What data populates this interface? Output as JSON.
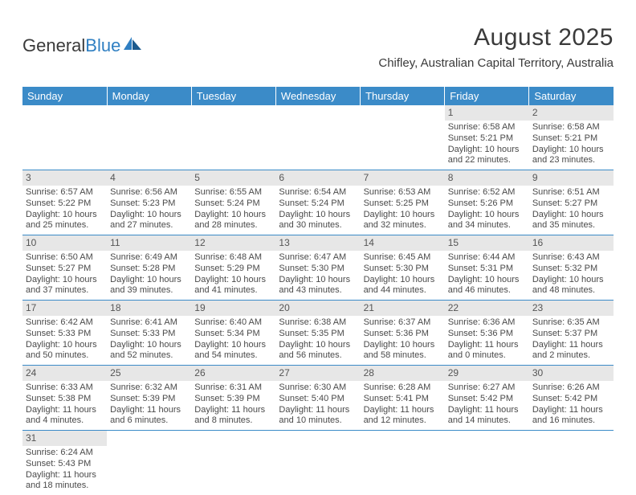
{
  "brand": {
    "part1": "General",
    "part2": "Blue"
  },
  "title": "August 2025",
  "location": "Chifley, Australian Capital Territory, Australia",
  "colors": {
    "header_bg": "#3b8bc8",
    "header_fg": "#ffffff",
    "daynum_bg": "#e7e7e7",
    "row_border": "#3b8bc8"
  },
  "fonts": {
    "title_size": 30,
    "location_size": 15,
    "th_size": 13,
    "cell_size": 11
  },
  "weekdays": [
    "Sunday",
    "Monday",
    "Tuesday",
    "Wednesday",
    "Thursday",
    "Friday",
    "Saturday"
  ],
  "weeks": [
    [
      {
        "day": "",
        "sunrise": "",
        "sunset": "",
        "daylight": ""
      },
      {
        "day": "",
        "sunrise": "",
        "sunset": "",
        "daylight": ""
      },
      {
        "day": "",
        "sunrise": "",
        "sunset": "",
        "daylight": ""
      },
      {
        "day": "",
        "sunrise": "",
        "sunset": "",
        "daylight": ""
      },
      {
        "day": "",
        "sunrise": "",
        "sunset": "",
        "daylight": ""
      },
      {
        "day": "1",
        "sunrise": "Sunrise: 6:58 AM",
        "sunset": "Sunset: 5:21 PM",
        "daylight": "Daylight: 10 hours and 22 minutes."
      },
      {
        "day": "2",
        "sunrise": "Sunrise: 6:58 AM",
        "sunset": "Sunset: 5:21 PM",
        "daylight": "Daylight: 10 hours and 23 minutes."
      }
    ],
    [
      {
        "day": "3",
        "sunrise": "Sunrise: 6:57 AM",
        "sunset": "Sunset: 5:22 PM",
        "daylight": "Daylight: 10 hours and 25 minutes."
      },
      {
        "day": "4",
        "sunrise": "Sunrise: 6:56 AM",
        "sunset": "Sunset: 5:23 PM",
        "daylight": "Daylight: 10 hours and 27 minutes."
      },
      {
        "day": "5",
        "sunrise": "Sunrise: 6:55 AM",
        "sunset": "Sunset: 5:24 PM",
        "daylight": "Daylight: 10 hours and 28 minutes."
      },
      {
        "day": "6",
        "sunrise": "Sunrise: 6:54 AM",
        "sunset": "Sunset: 5:24 PM",
        "daylight": "Daylight: 10 hours and 30 minutes."
      },
      {
        "day": "7",
        "sunrise": "Sunrise: 6:53 AM",
        "sunset": "Sunset: 5:25 PM",
        "daylight": "Daylight: 10 hours and 32 minutes."
      },
      {
        "day": "8",
        "sunrise": "Sunrise: 6:52 AM",
        "sunset": "Sunset: 5:26 PM",
        "daylight": "Daylight: 10 hours and 34 minutes."
      },
      {
        "day": "9",
        "sunrise": "Sunrise: 6:51 AM",
        "sunset": "Sunset: 5:27 PM",
        "daylight": "Daylight: 10 hours and 35 minutes."
      }
    ],
    [
      {
        "day": "10",
        "sunrise": "Sunrise: 6:50 AM",
        "sunset": "Sunset: 5:27 PM",
        "daylight": "Daylight: 10 hours and 37 minutes."
      },
      {
        "day": "11",
        "sunrise": "Sunrise: 6:49 AM",
        "sunset": "Sunset: 5:28 PM",
        "daylight": "Daylight: 10 hours and 39 minutes."
      },
      {
        "day": "12",
        "sunrise": "Sunrise: 6:48 AM",
        "sunset": "Sunset: 5:29 PM",
        "daylight": "Daylight: 10 hours and 41 minutes."
      },
      {
        "day": "13",
        "sunrise": "Sunrise: 6:47 AM",
        "sunset": "Sunset: 5:30 PM",
        "daylight": "Daylight: 10 hours and 43 minutes."
      },
      {
        "day": "14",
        "sunrise": "Sunrise: 6:45 AM",
        "sunset": "Sunset: 5:30 PM",
        "daylight": "Daylight: 10 hours and 44 minutes."
      },
      {
        "day": "15",
        "sunrise": "Sunrise: 6:44 AM",
        "sunset": "Sunset: 5:31 PM",
        "daylight": "Daylight: 10 hours and 46 minutes."
      },
      {
        "day": "16",
        "sunrise": "Sunrise: 6:43 AM",
        "sunset": "Sunset: 5:32 PM",
        "daylight": "Daylight: 10 hours and 48 minutes."
      }
    ],
    [
      {
        "day": "17",
        "sunrise": "Sunrise: 6:42 AM",
        "sunset": "Sunset: 5:33 PM",
        "daylight": "Daylight: 10 hours and 50 minutes."
      },
      {
        "day": "18",
        "sunrise": "Sunrise: 6:41 AM",
        "sunset": "Sunset: 5:33 PM",
        "daylight": "Daylight: 10 hours and 52 minutes."
      },
      {
        "day": "19",
        "sunrise": "Sunrise: 6:40 AM",
        "sunset": "Sunset: 5:34 PM",
        "daylight": "Daylight: 10 hours and 54 minutes."
      },
      {
        "day": "20",
        "sunrise": "Sunrise: 6:38 AM",
        "sunset": "Sunset: 5:35 PM",
        "daylight": "Daylight: 10 hours and 56 minutes."
      },
      {
        "day": "21",
        "sunrise": "Sunrise: 6:37 AM",
        "sunset": "Sunset: 5:36 PM",
        "daylight": "Daylight: 10 hours and 58 minutes."
      },
      {
        "day": "22",
        "sunrise": "Sunrise: 6:36 AM",
        "sunset": "Sunset: 5:36 PM",
        "daylight": "Daylight: 11 hours and 0 minutes."
      },
      {
        "day": "23",
        "sunrise": "Sunrise: 6:35 AM",
        "sunset": "Sunset: 5:37 PM",
        "daylight": "Daylight: 11 hours and 2 minutes."
      }
    ],
    [
      {
        "day": "24",
        "sunrise": "Sunrise: 6:33 AM",
        "sunset": "Sunset: 5:38 PM",
        "daylight": "Daylight: 11 hours and 4 minutes."
      },
      {
        "day": "25",
        "sunrise": "Sunrise: 6:32 AM",
        "sunset": "Sunset: 5:39 PM",
        "daylight": "Daylight: 11 hours and 6 minutes."
      },
      {
        "day": "26",
        "sunrise": "Sunrise: 6:31 AM",
        "sunset": "Sunset: 5:39 PM",
        "daylight": "Daylight: 11 hours and 8 minutes."
      },
      {
        "day": "27",
        "sunrise": "Sunrise: 6:30 AM",
        "sunset": "Sunset: 5:40 PM",
        "daylight": "Daylight: 11 hours and 10 minutes."
      },
      {
        "day": "28",
        "sunrise": "Sunrise: 6:28 AM",
        "sunset": "Sunset: 5:41 PM",
        "daylight": "Daylight: 11 hours and 12 minutes."
      },
      {
        "day": "29",
        "sunrise": "Sunrise: 6:27 AM",
        "sunset": "Sunset: 5:42 PM",
        "daylight": "Daylight: 11 hours and 14 minutes."
      },
      {
        "day": "30",
        "sunrise": "Sunrise: 6:26 AM",
        "sunset": "Sunset: 5:42 PM",
        "daylight": "Daylight: 11 hours and 16 minutes."
      }
    ],
    [
      {
        "day": "31",
        "sunrise": "Sunrise: 6:24 AM",
        "sunset": "Sunset: 5:43 PM",
        "daylight": "Daylight: 11 hours and 18 minutes."
      },
      {
        "day": "",
        "sunrise": "",
        "sunset": "",
        "daylight": ""
      },
      {
        "day": "",
        "sunrise": "",
        "sunset": "",
        "daylight": ""
      },
      {
        "day": "",
        "sunrise": "",
        "sunset": "",
        "daylight": ""
      },
      {
        "day": "",
        "sunrise": "",
        "sunset": "",
        "daylight": ""
      },
      {
        "day": "",
        "sunrise": "",
        "sunset": "",
        "daylight": ""
      },
      {
        "day": "",
        "sunrise": "",
        "sunset": "",
        "daylight": ""
      }
    ]
  ]
}
